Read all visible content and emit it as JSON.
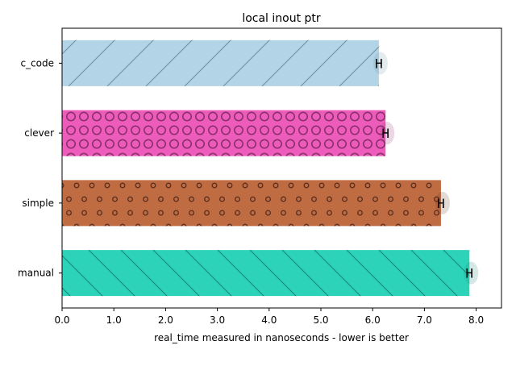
{
  "chart_data": {
    "type": "bar",
    "orientation": "horizontal",
    "title": "local inout ptr",
    "xlabel": "real_time measured in nanoseconds - lower is better",
    "ylabel": "",
    "xlim": [
      0,
      8.5
    ],
    "xticks": [
      "0.0",
      "1.0",
      "2.0",
      "3.0",
      "4.0",
      "5.0",
      "6.0",
      "7.0",
      "8.0"
    ],
    "categories": [
      "c_code",
      "clever",
      "simple",
      "manual"
    ],
    "values": [
      6.12,
      6.25,
      7.32,
      7.87
    ],
    "errors": [
      0.06,
      0.05,
      0.05,
      0.04
    ],
    "error_marker": "H",
    "colors": [
      "#b2d4e6",
      "#ee5cbb",
      "#c06c42",
      "#2dd3b9"
    ],
    "hatch_colors": [
      "#6a8ea1",
      "#8b2f6d",
      "#5e3020",
      "#168272"
    ],
    "hatches": [
      "slash-wide",
      "circles",
      "dots",
      "backslash"
    ],
    "grid": false,
    "legend": "none"
  }
}
